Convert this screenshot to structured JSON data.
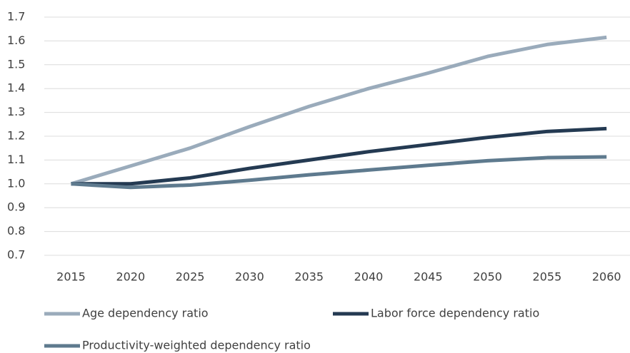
{
  "chart_data": {
    "type": "line",
    "categories": [
      "2015",
      "2020",
      "2025",
      "2030",
      "2035",
      "2040",
      "2045",
      "2050",
      "2055",
      "2060"
    ],
    "series": [
      {
        "name": "Age dependency ratio",
        "color": "#9aabbb",
        "values": [
          1.0,
          1.075,
          1.15,
          1.24,
          1.325,
          1.4,
          1.465,
          1.535,
          1.585,
          1.615
        ]
      },
      {
        "name": "Labor force dependency ratio",
        "color": "#243a52",
        "values": [
          1.0,
          1.0,
          1.025,
          1.065,
          1.1,
          1.135,
          1.165,
          1.195,
          1.22,
          1.232
        ]
      },
      {
        "name": "Productivity-weighted dependency ratio",
        "color": "#5e7a8e",
        "values": [
          1.0,
          0.985,
          0.995,
          1.015,
          1.038,
          1.058,
          1.078,
          1.097,
          1.11,
          1.113
        ]
      }
    ],
    "ylim": [
      0.7,
      1.7
    ],
    "yticks": [
      0.7,
      0.8,
      0.9,
      {
        "value": 1.0,
        "label": "1.0"
      },
      1.1,
      1.2,
      1.3,
      1.4,
      1.5,
      1.6,
      1.7
    ],
    "grid": true
  }
}
